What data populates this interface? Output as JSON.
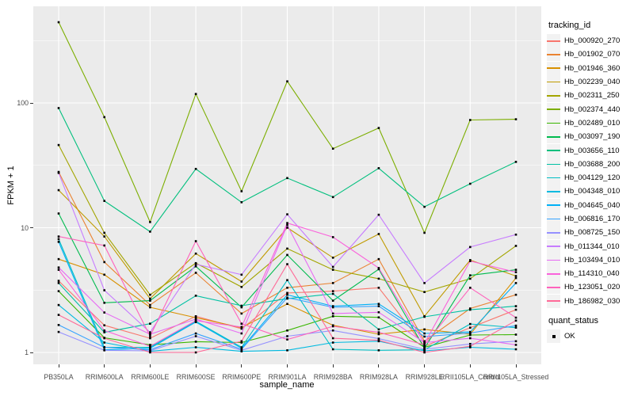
{
  "figure": {
    "y_axis_title": "FPKM + 1",
    "x_axis_title": "sample_name",
    "legend": {
      "tracking_title": "tracking_id",
      "quant_title": "quant_status",
      "quant_items": [
        {
          "label": "OK",
          "marker": "black-square"
        }
      ]
    },
    "colors": {
      "panel_bg": "#EBEBEB",
      "grid": "#FFFFFF",
      "tick_text": "#4D4D4D",
      "point": "#000000",
      "legend_key_bg": "#F2F2F2"
    }
  },
  "chart_data": {
    "type": "line",
    "title": "",
    "xlabel": "sample_name",
    "ylabel": "FPKM + 1",
    "y_scale": "log10",
    "ylim": [
      0.74,
      600
    ],
    "y_major_ticks": [
      1,
      10,
      100
    ],
    "y_tick_labels": [
      "1",
      "10",
      "100"
    ],
    "y_minor_ticks": [
      3.162,
      31.62,
      316.2
    ],
    "grid": "white major+minor horizontal, white vertical per category, on grey panel",
    "legend_position": "right",
    "point_marker": "small black square at every data point (quant_status = OK)",
    "categories": [
      "PB350LA",
      "RRIM600LA",
      "RRIM600LE",
      "RRIM600SE",
      "RRIM600PE",
      "RRIM901LA",
      "RRIM928BA",
      "RRIM928LA",
      "RRIM928LE",
      "RRII105LA_Control",
      "RRII105LA_Stressed"
    ],
    "series": [
      {
        "name": "Hb_000920_270",
        "color": "#F8766D",
        "values": [
          3.75,
          1.65,
          1.3,
          1.95,
          1.55,
          3.0,
          3.1,
          3.3,
          1.12,
          1.58,
          2.2
        ]
      },
      {
        "name": "Hb_001902_070",
        "color": "#EA8331",
        "values": [
          28,
          5.3,
          2.4,
          4.35,
          2.05,
          3.3,
          3.6,
          5.6,
          1.23,
          2.25,
          2.9
        ]
      },
      {
        "name": "Hb_001946_360",
        "color": "#D89000",
        "values": [
          5.6,
          4.2,
          2.3,
          1.9,
          1.58,
          2.45,
          1.65,
          1.4,
          1.53,
          1.4,
          3.95
        ]
      },
      {
        "name": "Hb_002239_040",
        "color": "#C09B00",
        "values": [
          20,
          8.5,
          2.7,
          6.2,
          3.7,
          10.0,
          5.75,
          8.9,
          1.95,
          5.5,
          4.1
        ]
      },
      {
        "name": "Hb_002311_250",
        "color": "#A3A500",
        "values": [
          46,
          9.1,
          2.9,
          5.2,
          3.35,
          6.8,
          4.6,
          3.9,
          3.05,
          3.9,
          7.15
        ]
      },
      {
        "name": "Hb_002374_440",
        "color": "#7CAE00",
        "values": [
          444,
          77,
          11.1,
          118,
          19.6,
          149,
          43,
          63,
          9.1,
          73,
          74
        ]
      },
      {
        "name": "Hb_002489_010",
        "color": "#39B600",
        "values": [
          3.1,
          1.31,
          1.15,
          1.22,
          1.2,
          1.5,
          1.95,
          1.91,
          1.1,
          1.38,
          1.39
        ]
      },
      {
        "name": "Hb_003097_190",
        "color": "#00BB4E",
        "values": [
          13,
          2.5,
          2.6,
          4.9,
          2.3,
          6.05,
          2.6,
          4.65,
          1.08,
          4.15,
          4.6
        ]
      },
      {
        "name": "Hb_003656_110",
        "color": "#00BF7D",
        "values": [
          91,
          16.4,
          9.3,
          29.6,
          16,
          25,
          17.6,
          30,
          14.7,
          22.5,
          33.7
        ]
      },
      {
        "name": "Hb_003688_200",
        "color": "#00C1A3",
        "values": [
          3.6,
          1.45,
          1.7,
          2.85,
          2.37,
          2.7,
          2.95,
          1.53,
          1.93,
          2.2,
          2.35
        ]
      },
      {
        "name": "Hb_004129_120",
        "color": "#00BFC4",
        "values": [
          8.1,
          1.1,
          1.1,
          1.78,
          1.1,
          3.8,
          1.06,
          1.04,
          1.05,
          1.69,
          1.58
        ]
      },
      {
        "name": "Hb_004348_010",
        "color": "#00BAE0",
        "values": [
          2.4,
          1.2,
          1.02,
          1.1,
          1.02,
          1.04,
          1.2,
          1.23,
          1.03,
          1.1,
          1.06
        ]
      },
      {
        "name": "Hb_004645_040",
        "color": "#00B0F6",
        "values": [
          7.7,
          1.05,
          1.08,
          1.75,
          1.08,
          2.9,
          2.35,
          2.45,
          1.42,
          1.46,
          3.6
        ]
      },
      {
        "name": "Hb_006816_170",
        "color": "#35A2FF",
        "values": [
          1.66,
          1.1,
          1.05,
          1.42,
          1.06,
          2.75,
          2.3,
          2.35,
          1.34,
          1.43,
          1.64
        ]
      },
      {
        "name": "Hb_008725_150",
        "color": "#9590FF",
        "values": [
          1.46,
          1.04,
          1.03,
          1.35,
          1.04,
          1.35,
          1.5,
          1.29,
          1.06,
          1.17,
          1.23
        ]
      },
      {
        "name": "Hb_011344_010",
        "color": "#C77CFF",
        "values": [
          27.5,
          3.15,
          1.45,
          5.1,
          4.2,
          12.8,
          4.85,
          12.7,
          3.6,
          7.0,
          8.8
        ]
      },
      {
        "name": "Hb_103494_010",
        "color": "#E76BF3",
        "values": [
          4.8,
          2.09,
          1.4,
          1.85,
          1.42,
          10.5,
          2.05,
          2.1,
          1.2,
          1.3,
          1.15
        ]
      },
      {
        "name": "Hb_114310_040",
        "color": "#FA62DB",
        "values": [
          4.6,
          1.5,
          1.12,
          1.8,
          1.6,
          10.9,
          8.4,
          4.75,
          1.18,
          5.4,
          4.4
        ]
      },
      {
        "name": "Hb_123051_020",
        "color": "#FF62BC",
        "values": [
          8.5,
          7.2,
          1.35,
          7.8,
          1.7,
          1.27,
          1.62,
          1.45,
          1.15,
          3.3,
          1.9
        ]
      },
      {
        "name": "Hb_186982_030",
        "color": "#FF6A98",
        "values": [
          2.0,
          1.3,
          1.0,
          1.0,
          1.23,
          5.1,
          1.3,
          1.25,
          1.0,
          1.12,
          1.8
        ]
      }
    ]
  }
}
